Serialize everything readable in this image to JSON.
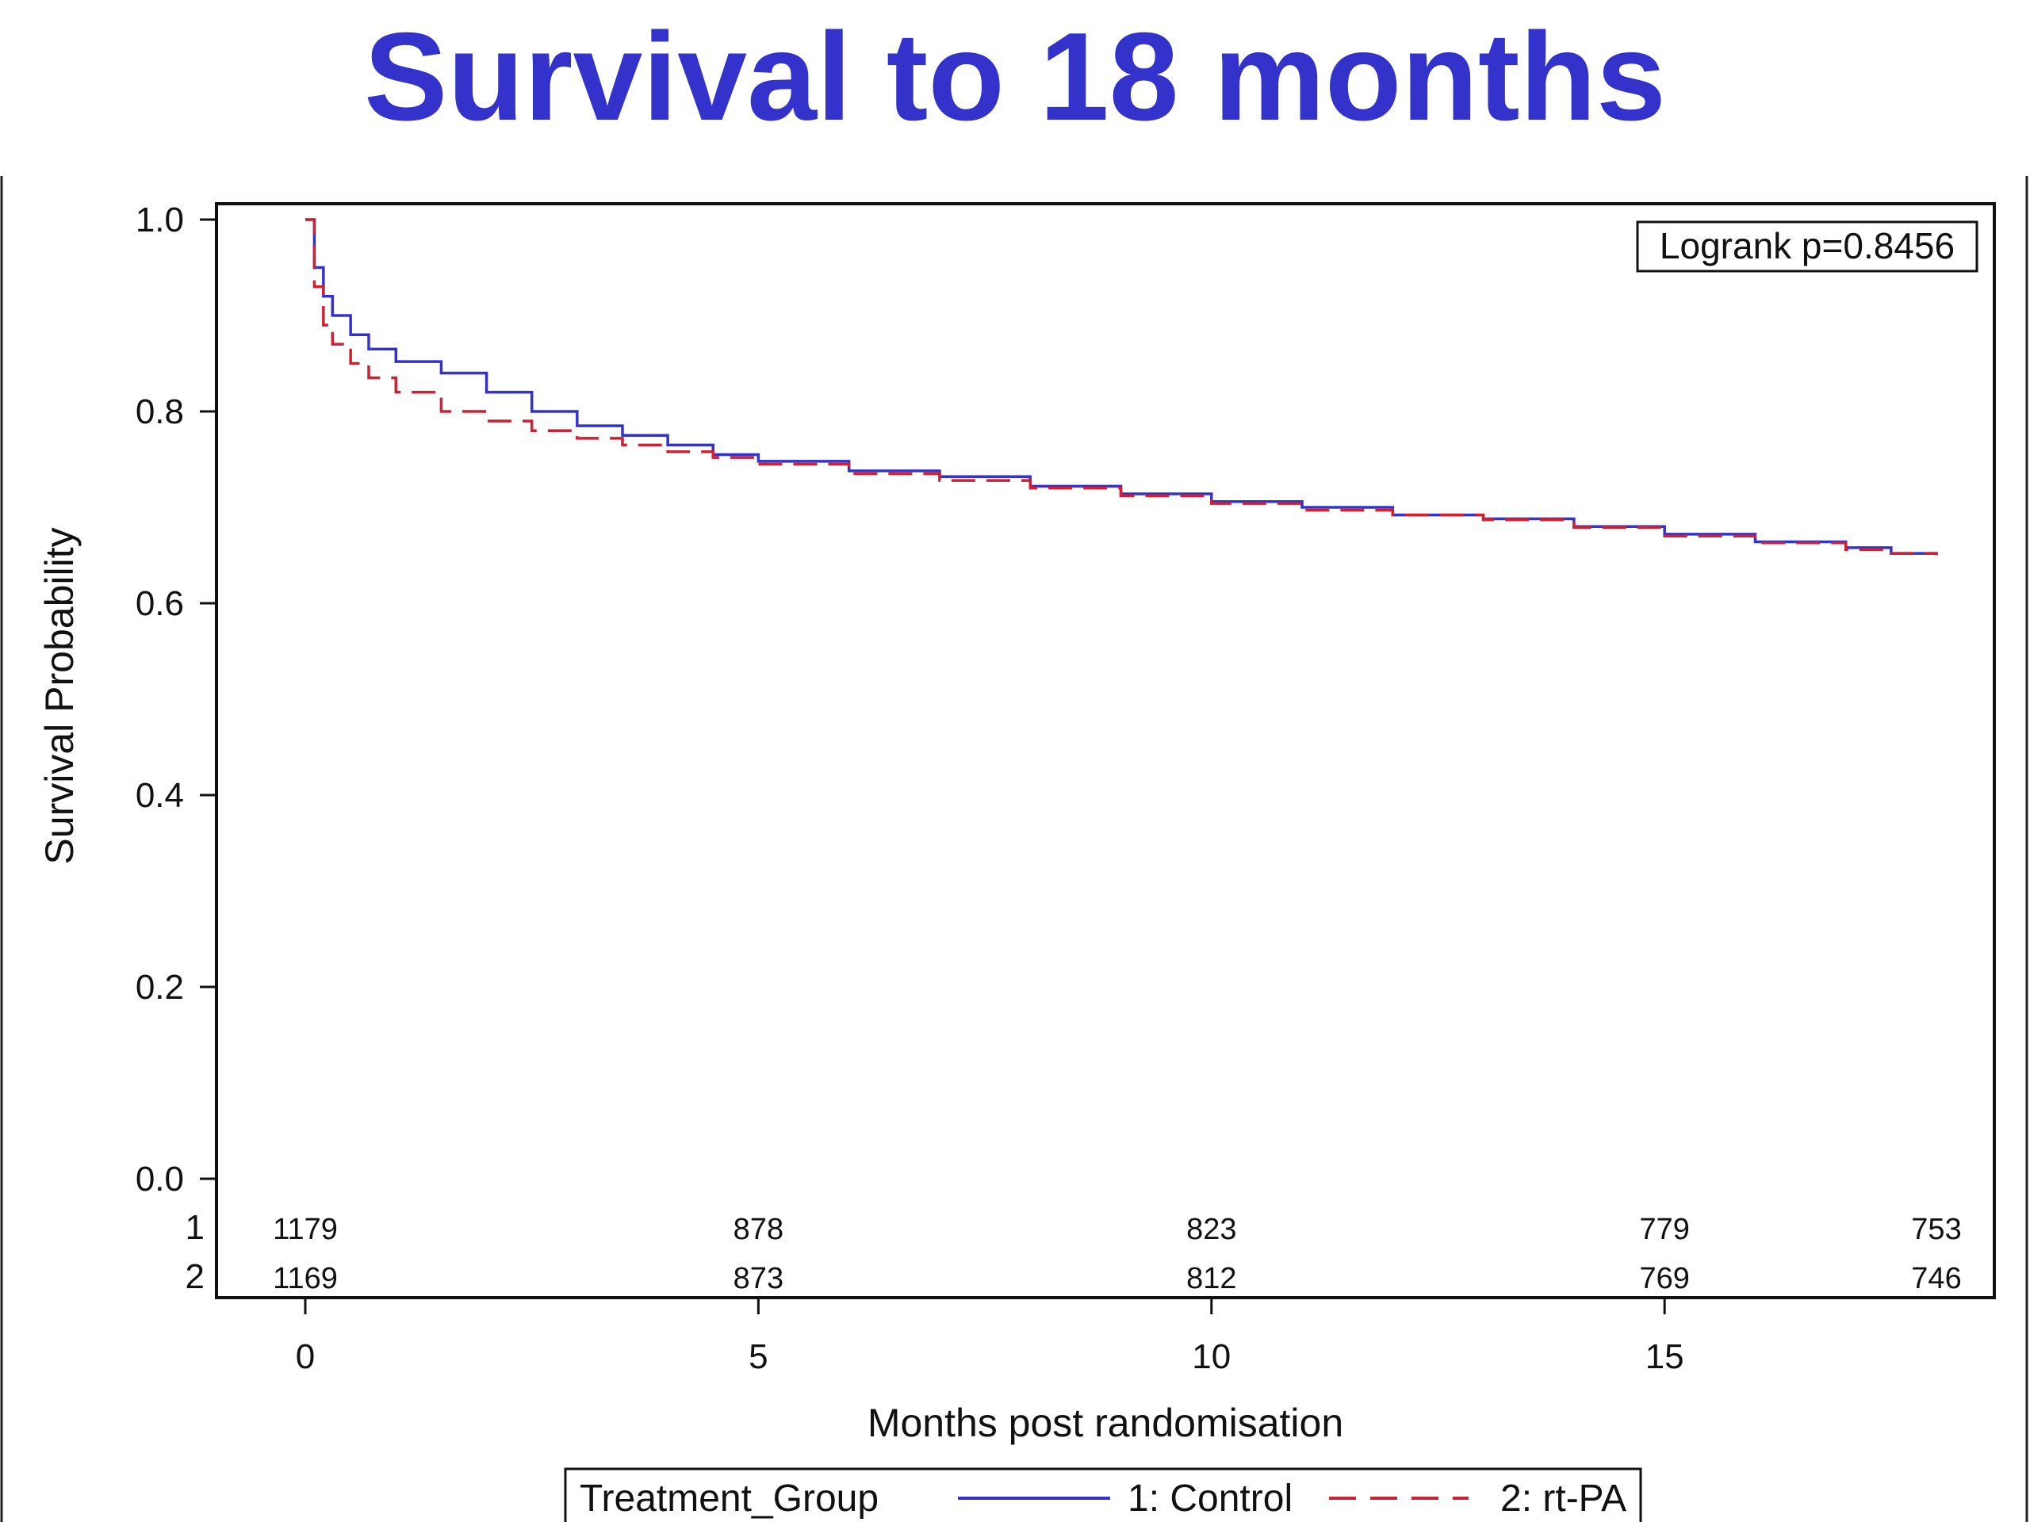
{
  "chart_data": {
    "type": "line",
    "title": "Survival to 18 months",
    "xlabel": "Months post randomisation",
    "ylabel": "Survival Probability",
    "xlim": [
      0,
      18
    ],
    "ylim": [
      0,
      1.0
    ],
    "x_ticks": [
      "0",
      "5",
      "10",
      "15"
    ],
    "y_ticks": [
      "0.0",
      "0.2",
      "0.4",
      "0.6",
      "0.8",
      "1.0"
    ],
    "annotation": "Logrank p=0.8456",
    "series": [
      {
        "name": "1: Control",
        "color": "#3333cc",
        "style": "solid",
        "x": [
          0,
          0.1,
          0.2,
          0.3,
          0.5,
          0.7,
          1.0,
          1.5,
          2.0,
          2.5,
          3.0,
          3.5,
          4.0,
          4.5,
          5.0,
          6.0,
          7.0,
          8.0,
          9.0,
          10.0,
          11.0,
          12.0,
          13.0,
          14.0,
          15.0,
          16.0,
          17.0,
          17.5,
          18.0
        ],
        "y": [
          1.0,
          0.95,
          0.92,
          0.9,
          0.88,
          0.865,
          0.852,
          0.84,
          0.82,
          0.8,
          0.785,
          0.775,
          0.765,
          0.755,
          0.748,
          0.738,
          0.732,
          0.722,
          0.714,
          0.706,
          0.7,
          0.692,
          0.688,
          0.68,
          0.672,
          0.664,
          0.658,
          0.652,
          0.65
        ]
      },
      {
        "name": "2: rt-PA",
        "color": "#cc2233",
        "style": "dashed",
        "x": [
          0,
          0.1,
          0.2,
          0.3,
          0.5,
          0.7,
          1.0,
          1.5,
          2.0,
          2.5,
          3.0,
          3.5,
          4.0,
          4.5,
          5.0,
          6.0,
          7.0,
          8.0,
          9.0,
          10.0,
          11.0,
          12.0,
          13.0,
          14.0,
          15.0,
          16.0,
          17.0,
          17.5,
          18.0
        ],
        "y": [
          1.0,
          0.93,
          0.89,
          0.87,
          0.85,
          0.835,
          0.82,
          0.8,
          0.79,
          0.78,
          0.772,
          0.765,
          0.758,
          0.752,
          0.745,
          0.735,
          0.728,
          0.72,
          0.712,
          0.704,
          0.697,
          0.692,
          0.687,
          0.679,
          0.67,
          0.663,
          0.656,
          0.652,
          0.65
        ]
      }
    ],
    "at_risk": {
      "rows": [
        {
          "label": "1",
          "values": [
            "1179",
            "878",
            "823",
            "779",
            "753"
          ]
        },
        {
          "label": "2",
          "values": [
            "1169",
            "873",
            "812",
            "769",
            "746"
          ]
        }
      ],
      "x": [
        0,
        5,
        10,
        15,
        18
      ]
    },
    "legend": {
      "title": "Treatment_Group",
      "entries": [
        "1: Control",
        "2: rt-PA"
      ],
      "placement": "bottom"
    }
  }
}
